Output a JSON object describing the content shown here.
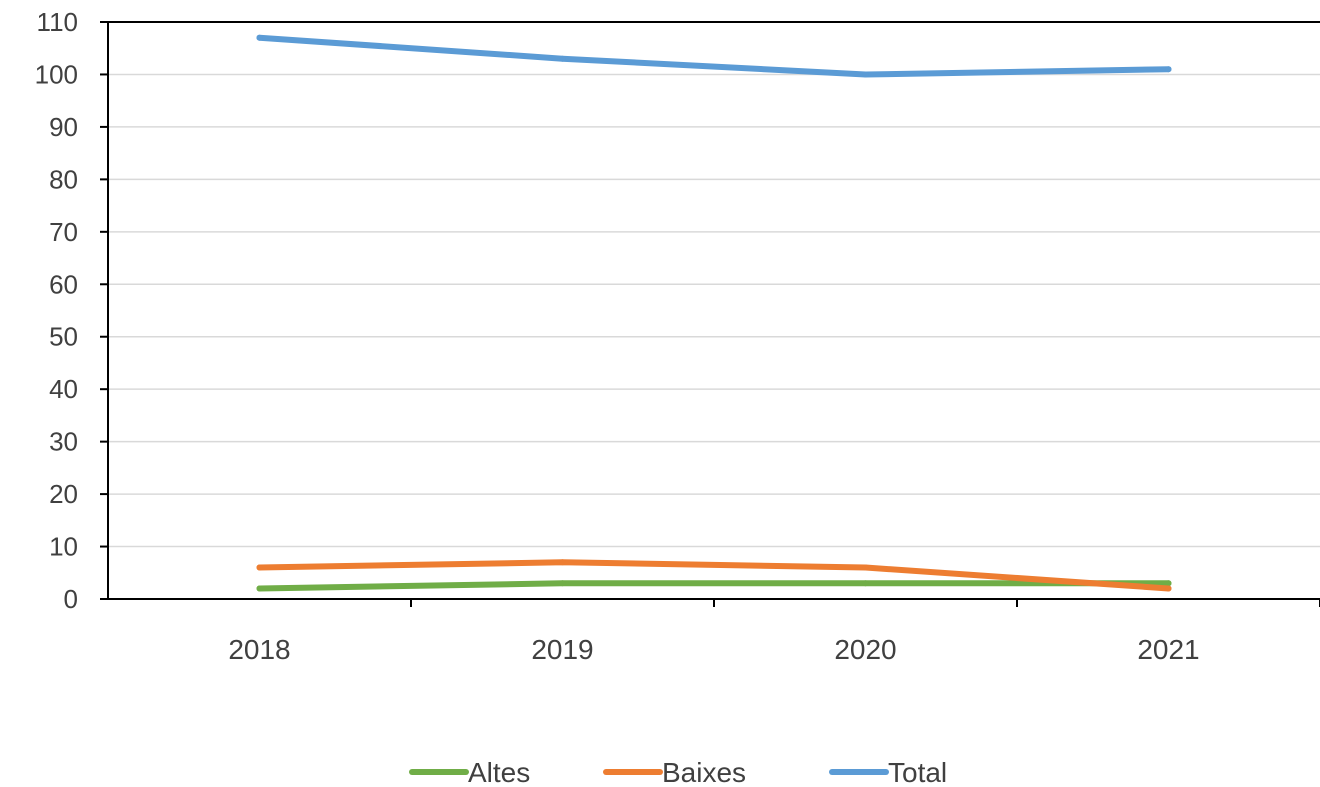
{
  "chart_data": {
    "type": "line",
    "title": "",
    "xlabel": "",
    "ylabel": "",
    "categories": [
      "2018",
      "2019",
      "2020",
      "2021"
    ],
    "ylim": [
      0,
      110
    ],
    "yticks": [
      0,
      10,
      20,
      30,
      40,
      50,
      60,
      70,
      80,
      90,
      100,
      110
    ],
    "ytick_labels": [
      "0",
      "10",
      "20",
      "30",
      "40",
      "50",
      "60",
      "70",
      "80",
      "90",
      "100",
      "110"
    ],
    "grid": true,
    "legend_position": "bottom",
    "series": [
      {
        "name": "Altes",
        "values": [
          2,
          3,
          3,
          3
        ],
        "color": "#70ad47"
      },
      {
        "name": "Baixes",
        "values": [
          6,
          7,
          6,
          2
        ],
        "color": "#ed7d31"
      },
      {
        "name": "Total",
        "values": [
          107,
          103,
          100,
          101
        ],
        "color": "#5b9bd5"
      }
    ]
  }
}
